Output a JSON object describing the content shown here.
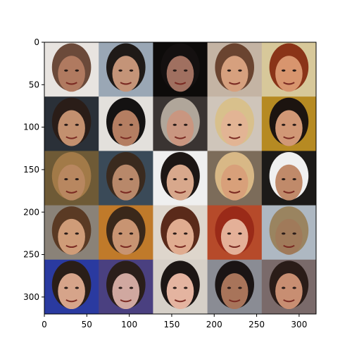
{
  "figure": {
    "x_ticks": [
      "0",
      "50",
      "100",
      "150",
      "200",
      "250",
      "300"
    ],
    "y_ticks": [
      "0",
      "50",
      "100",
      "150",
      "200",
      "250",
      "300"
    ],
    "grid": {
      "rows": 5,
      "cols": 5,
      "image_extent": 320
    },
    "tiles": [
      {
        "bg": "#e8e4e0",
        "hair": "#6b4a3a",
        "skin": "#b07a60"
      },
      {
        "bg": "#9aa7b5",
        "hair": "#1f1a17",
        "skin": "#c49478"
      },
      {
        "bg": "#0d0b0a",
        "hair": "#141010",
        "skin": "#a07060"
      },
      {
        "bg": "#c4b4a4",
        "hair": "#6a4430",
        "skin": "#d6a07e"
      },
      {
        "bg": "#d7c89a",
        "hair": "#8a3418",
        "skin": "#d8956e"
      },
      {
        "bg": "#2a3038",
        "hair": "#2a1d18",
        "skin": "#c3906f"
      },
      {
        "bg": "#e3e0dc",
        "hair": "#141212",
        "skin": "#b47e62"
      },
      {
        "bg": "#3a3432",
        "hair": "#b0a69a",
        "skin": "#c99680"
      },
      {
        "bg": "#cfc5ba",
        "hair": "#d8c08c",
        "skin": "#e2b494"
      },
      {
        "bg": "#b68a22",
        "hair": "#1c1410",
        "skin": "#d19876"
      },
      {
        "bg": "#6e5a36",
        "hair": "#a27a48",
        "skin": "#b88760"
      },
      {
        "bg": "#3a4a58",
        "hair": "#3a2a1e",
        "skin": "#b8886a"
      },
      {
        "bg": "#efefef",
        "hair": "#1c1614",
        "skin": "#d8a88c"
      },
      {
        "bg": "#7c6c5a",
        "hair": "#d8b886",
        "skin": "#d8a07a"
      },
      {
        "bg": "#1c1a18",
        "hair": "#f0f0f0",
        "skin": "#c08a6a"
      },
      {
        "bg": "#8a8278",
        "hair": "#5a3a24",
        "skin": "#cf9c78"
      },
      {
        "bg": "#c07a2a",
        "hair": "#3a281a",
        "skin": "#c89472"
      },
      {
        "bg": "#ded6cc",
        "hair": "#5a2a1a",
        "skin": "#e0ac90"
      },
      {
        "bg": "#b64a2a",
        "hair": "#9a2a18",
        "skin": "#e4b098"
      },
      {
        "bg": "#aeb8c2",
        "hair": "#9a8460",
        "skin": "#a07a5a"
      },
      {
        "bg": "#2a3aa0",
        "hair": "#2a1e18",
        "skin": "#d6a48a"
      },
      {
        "bg": "#4a4080",
        "hair": "#2a1e1a",
        "skin": "#d0a8a0"
      },
      {
        "bg": "#d6d0c8",
        "hair": "#1c1614",
        "skin": "#e4b4a0"
      },
      {
        "bg": "#8a8c94",
        "hair": "#1a1414",
        "skin": "#a8745a"
      },
      {
        "bg": "#7a6a6a",
        "hair": "#2a1c18",
        "skin": "#c88e72"
      }
    ]
  }
}
